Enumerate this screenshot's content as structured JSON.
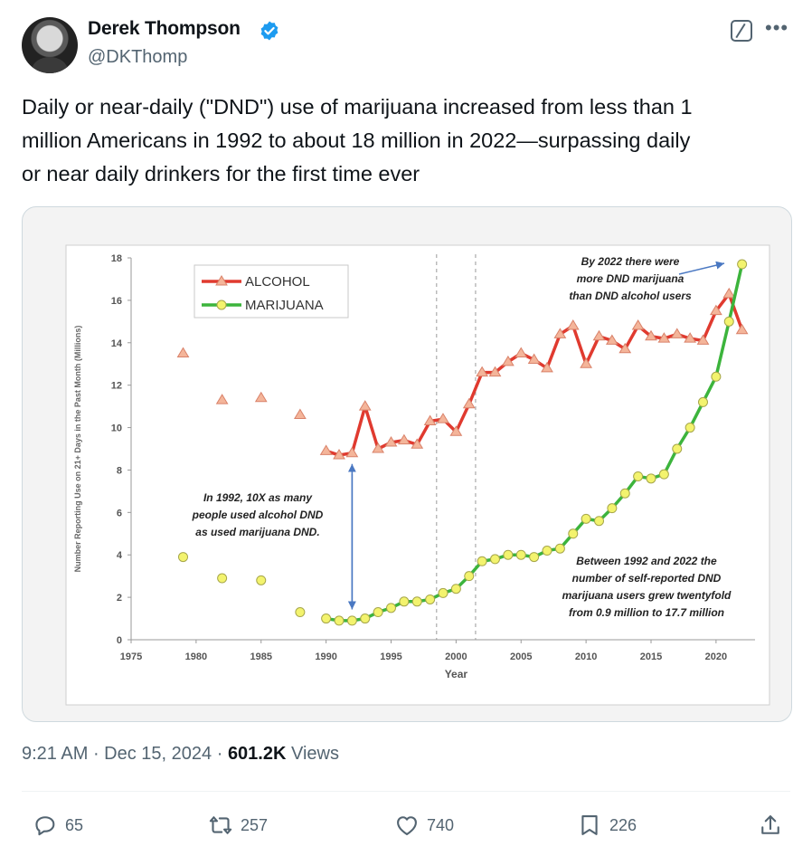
{
  "author": {
    "name": "Derek Thompson",
    "handle": "@DKThomp"
  },
  "icons": [
    "verified-badge-icon",
    "grok-icon",
    "more-icon",
    "reply-icon",
    "retweet-icon",
    "like-icon",
    "bookmark-icon",
    "share-icon"
  ],
  "colors": {
    "verified": "#1d9bf0",
    "alcohol": "#e03a2f",
    "marijuana": "#3cb43c",
    "secondary_text": "#536471"
  },
  "tweet_text": "Daily or near-daily (\"DND\") use of marijuana increased from less than 1\nmillion Americans in 1992 to about 18 million in 2022—surpassing daily\nor near daily drinkers for the first time ever",
  "meta": {
    "time": "9:21 AM",
    "date": "Dec 15, 2024",
    "views_count": "601.2K",
    "views_label": "Views"
  },
  "actions": {
    "replies": "65",
    "retweets": "257",
    "likes": "740",
    "bookmarks": "226"
  },
  "chart_data": {
    "type": "line",
    "title": "",
    "xlabel": "Year",
    "ylabel": "Number Reporting Use on 21+ Days in the Past Month (Millions)",
    "xlim": [
      1975,
      2023
    ],
    "ylim": [
      0,
      18
    ],
    "x_ticks": [
      1975,
      1980,
      1985,
      1990,
      1995,
      2000,
      2005,
      2010,
      2015,
      2020
    ],
    "y_ticks": [
      0,
      2,
      4,
      6,
      8,
      10,
      12,
      14,
      16,
      18
    ],
    "legend_position": "top-left",
    "vertical_dashed_lines": [
      1998.5,
      2001.5
    ],
    "series": [
      {
        "name": "ALCOHOL",
        "marker": "triangle",
        "isolated": [
          [
            1979,
            13.5
          ],
          [
            1982,
            11.3
          ],
          [
            1985,
            11.4
          ],
          [
            1988,
            10.6
          ]
        ],
        "connected": [
          [
            1990,
            8.9
          ],
          [
            1991,
            8.7
          ],
          [
            1992,
            8.8
          ],
          [
            1993,
            11.0
          ],
          [
            1994,
            9.0
          ],
          [
            1995,
            9.3
          ],
          [
            1996,
            9.4
          ],
          [
            1997,
            9.2
          ],
          [
            1998,
            10.3
          ],
          [
            1999,
            10.4
          ],
          [
            2000,
            9.8
          ],
          [
            2001,
            11.1
          ],
          [
            2002,
            12.6
          ],
          [
            2003,
            12.6
          ],
          [
            2004,
            13.1
          ],
          [
            2005,
            13.5
          ],
          [
            2006,
            13.2
          ],
          [
            2007,
            12.8
          ],
          [
            2008,
            14.4
          ],
          [
            2009,
            14.8
          ],
          [
            2010,
            13.0
          ],
          [
            2011,
            14.3
          ],
          [
            2012,
            14.1
          ],
          [
            2013,
            13.7
          ],
          [
            2014,
            14.8
          ],
          [
            2015,
            14.3
          ],
          [
            2016,
            14.2
          ],
          [
            2017,
            14.4
          ],
          [
            2018,
            14.2
          ],
          [
            2019,
            14.1
          ],
          [
            2020,
            15.5
          ],
          [
            2021,
            16.3
          ],
          [
            2022,
            14.6
          ]
        ]
      },
      {
        "name": "MARIJUANA",
        "marker": "circle",
        "isolated": [
          [
            1979,
            3.9
          ],
          [
            1982,
            2.9
          ],
          [
            1985,
            2.8
          ],
          [
            1988,
            1.3
          ]
        ],
        "connected": [
          [
            1990,
            1.0
          ],
          [
            1991,
            0.9
          ],
          [
            1992,
            0.9
          ],
          [
            1993,
            1.0
          ],
          [
            1994,
            1.3
          ],
          [
            1995,
            1.5
          ],
          [
            1996,
            1.8
          ],
          [
            1997,
            1.8
          ],
          [
            1998,
            1.9
          ],
          [
            1999,
            2.2
          ],
          [
            2000,
            2.4
          ],
          [
            2001,
            3.0
          ],
          [
            2002,
            3.7
          ],
          [
            2003,
            3.8
          ],
          [
            2004,
            4.0
          ],
          [
            2005,
            4.0
          ],
          [
            2006,
            3.9
          ],
          [
            2007,
            4.2
          ],
          [
            2008,
            4.3
          ],
          [
            2009,
            5.0
          ],
          [
            2010,
            5.7
          ],
          [
            2011,
            5.6
          ],
          [
            2012,
            6.2
          ],
          [
            2013,
            6.9
          ],
          [
            2014,
            7.7
          ],
          [
            2015,
            7.6
          ],
          [
            2016,
            7.8
          ],
          [
            2017,
            9.0
          ],
          [
            2018,
            10.0
          ],
          [
            2019,
            11.2
          ],
          [
            2020,
            12.4
          ],
          [
            2021,
            15.0
          ],
          [
            2022,
            17.7
          ]
        ]
      }
    ],
    "annotations": [
      {
        "text_lines": [
          "By 2022  there were",
          "more DND marijuana",
          "than DND alcohol users"
        ]
      },
      {
        "text_lines": [
          "In 1992, 10X as many",
          "people used alcohol DND",
          "as used marijuana DND."
        ]
      },
      {
        "text_lines": [
          "Between 1992 and 2022 the",
          "number of self-reported DND",
          "marijuana users grew twentyfold",
          "from 0.9 million to 17.7 million"
        ]
      }
    ]
  }
}
